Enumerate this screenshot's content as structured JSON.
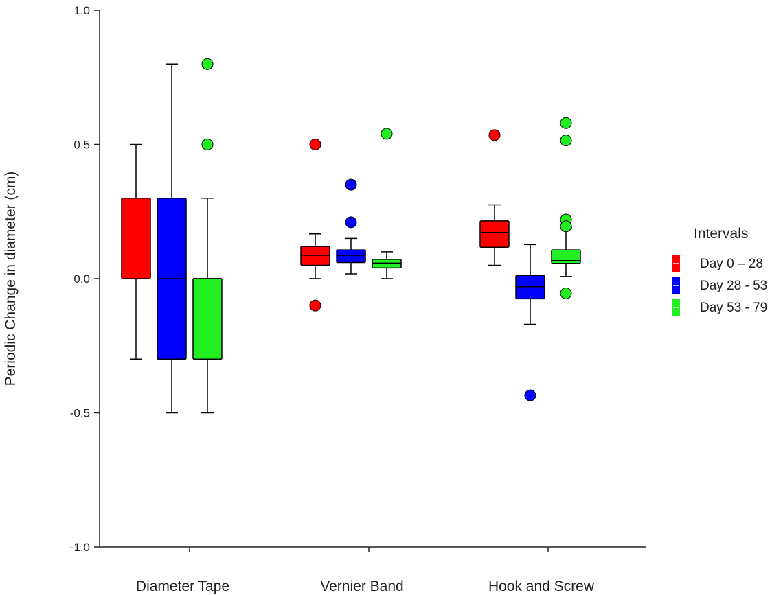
{
  "chart_data": {
    "type": "box",
    "title": "",
    "xlabel": "",
    "ylabel": "Periodic Change in diameter (cm)",
    "ylim": [
      -1.0,
      1.0
    ],
    "yticks": [
      1.0,
      0.5,
      0.0,
      -0.5,
      -1.0
    ],
    "ytick_labels": [
      "1.0",
      "0.5",
      "0.0",
      "-0.5",
      "-1.0"
    ],
    "categories": [
      "Diameter Tape",
      "Vernier Band",
      "Hook and Screw"
    ],
    "grid": false,
    "legend": {
      "title": "Intervals",
      "placement": "right",
      "entries": [
        "Day 0 – 28",
        "Day 28 - 53",
        "Day 53 - 79"
      ]
    },
    "series": [
      {
        "name": "Day 0 – 28",
        "color": "#ff0000",
        "boxes": [
          {
            "whisker_low": -0.3,
            "q1": 0.0,
            "median": 0.3,
            "q3": 0.3,
            "whisker_high": 0.5,
            "outliers": []
          },
          {
            "whisker_low": 0.0,
            "q1": 0.05,
            "median": 0.087,
            "q3": 0.12,
            "whisker_high": 0.167,
            "outliers": [
              0.5,
              -0.1
            ]
          },
          {
            "whisker_low": 0.05,
            "q1": 0.117,
            "median": 0.172,
            "q3": 0.215,
            "whisker_high": 0.275,
            "outliers": [
              0.535
            ]
          }
        ]
      },
      {
        "name": "Day 28 - 53",
        "color": "#0000ff",
        "boxes": [
          {
            "whisker_low": -0.5,
            "q1": -0.3,
            "median": 0.0,
            "q3": 0.3,
            "whisker_high": 0.8,
            "outliers": []
          },
          {
            "whisker_low": 0.018,
            "q1": 0.06,
            "median": 0.087,
            "q3": 0.107,
            "whisker_high": 0.15,
            "outliers": [
              0.35,
              0.21
            ]
          },
          {
            "whisker_low": -0.17,
            "q1": -0.075,
            "median": -0.03,
            "q3": 0.012,
            "whisker_high": 0.127,
            "outliers": [
              -0.435
            ]
          }
        ]
      },
      {
        "name": "Day 53 - 79",
        "color": "#22ee22",
        "boxes": [
          {
            "whisker_low": -0.5,
            "q1": -0.3,
            "median": 0.0,
            "q3": 0.0,
            "whisker_high": 0.3,
            "outliers": [
              0.8,
              0.5
            ]
          },
          {
            "whisker_low": 0.0,
            "q1": 0.04,
            "median": 0.058,
            "q3": 0.072,
            "whisker_high": 0.1,
            "outliers": [
              0.54
            ]
          },
          {
            "whisker_low": 0.008,
            "q1": 0.057,
            "median": 0.067,
            "q3": 0.107,
            "whisker_high": 0.19,
            "outliers": [
              0.58,
              0.515,
              0.22,
              0.195,
              -0.055
            ]
          }
        ]
      }
    ]
  }
}
